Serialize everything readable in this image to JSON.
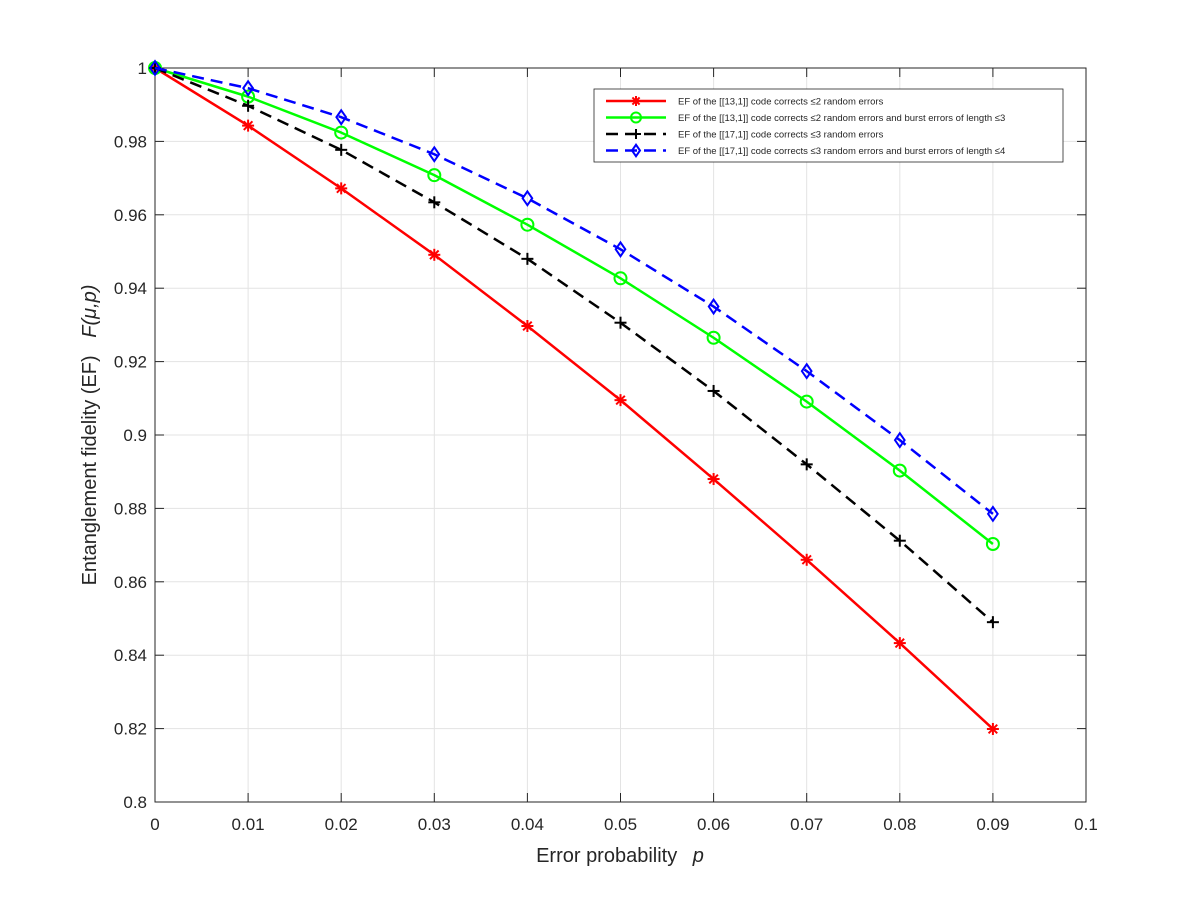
{
  "chart_data": {
    "type": "line",
    "title": "",
    "xlabel": "Error probability",
    "xlabel_symbol": "p",
    "ylabel": "Entanglement fidelity (EF)",
    "ylabel_symbol": "F(μ,p)",
    "xlim": [
      0,
      0.1
    ],
    "ylim": [
      0.8,
      1.0
    ],
    "x_ticks": [
      "0",
      "0.01",
      "0.02",
      "0.03",
      "0.04",
      "0.05",
      "0.06",
      "0.07",
      "0.08",
      "0.09",
      "0.1"
    ],
    "y_ticks": [
      "0.8",
      "0.82",
      "0.84",
      "0.86",
      "0.88",
      "0.9",
      "0.92",
      "0.94",
      "0.96",
      "0.98",
      "1"
    ],
    "grid": true,
    "legend_position": "top-right",
    "x": [
      0,
      0.01,
      0.02,
      0.03,
      0.04,
      0.05,
      0.06,
      0.07,
      0.08,
      0.09
    ],
    "series": [
      {
        "name": "EF of the [[13,1]] code corrects ≤2 random errors",
        "color": "#ff0000",
        "line_style": "solid",
        "marker": "asterisk",
        "values": [
          1.0,
          0.9843,
          0.9672,
          0.9491,
          0.9297,
          0.9095,
          0.888,
          0.866,
          0.8433,
          0.8199
        ]
      },
      {
        "name": "EF of the [[13,1]] code corrects ≤2 random errors and burst errors of length ≤3",
        "color": "#00ff00",
        "line_style": "solid",
        "marker": "circle",
        "values": [
          1.0,
          0.9922,
          0.9824,
          0.9708,
          0.9573,
          0.9427,
          0.9265,
          0.9091,
          0.8903,
          0.8703
        ]
      },
      {
        "name": "EF of the [[17,1]] code corrects ≤3 random errors",
        "color": "#000000",
        "line_style": "dashed",
        "marker": "plus",
        "values": [
          1.0,
          0.9897,
          0.9777,
          0.9634,
          0.948,
          0.9306,
          0.912,
          0.892,
          0.8712,
          0.849
        ]
      },
      {
        "name": "EF of the [[17,1]] code corrects ≤3 random errors and burst errors of length ≤4",
        "color": "#0000ff",
        "line_style": "dashed",
        "marker": "diamond",
        "values": [
          1.0,
          0.9945,
          0.9866,
          0.9765,
          0.9645,
          0.9506,
          0.935,
          0.9174,
          0.8986,
          0.8785
        ]
      }
    ]
  }
}
